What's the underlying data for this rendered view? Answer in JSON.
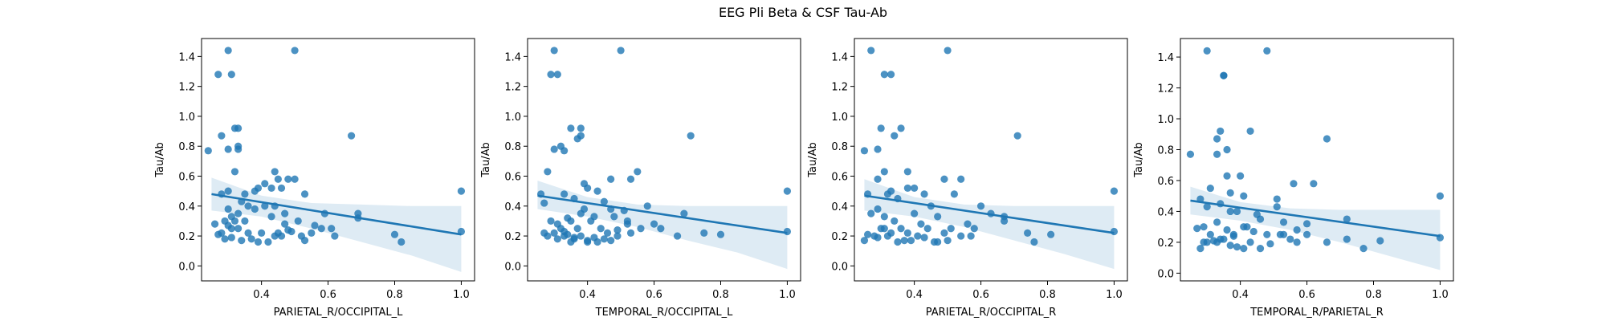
{
  "figure": {
    "title": "EEG Pli Beta & CSF Tau-Ab"
  },
  "colors": {
    "point": "#1f77b4",
    "line": "#1f77b4",
    "band": "#1f77b4"
  },
  "chart_data": [
    {
      "type": "scatter",
      "xlabel": "PARIETAL_R/OCCIPITAL_L",
      "ylabel": "Tau/Ab",
      "xlim": [
        0.22,
        1.04
      ],
      "ylim": [
        -0.1,
        1.52
      ],
      "xticks": [
        0.4,
        0.6,
        0.8,
        1.0
      ],
      "yticks": [
        0.0,
        0.2,
        0.4,
        0.6,
        0.8,
        1.0,
        1.2,
        1.4
      ],
      "regression": {
        "x": [
          0.25,
          1.0
        ],
        "y": [
          0.48,
          0.21
        ]
      },
      "ci": {
        "x": [
          0.25,
          0.4,
          0.55,
          0.7,
          0.85,
          1.0
        ],
        "upper": [
          0.59,
          0.47,
          0.42,
          0.41,
          0.4,
          0.4
        ],
        "lower": [
          0.37,
          0.33,
          0.25,
          0.16,
          0.07,
          -0.04
        ]
      },
      "points": {
        "x": [
          0.3,
          0.5,
          0.27,
          0.31,
          0.32,
          0.33,
          0.33,
          0.3,
          0.33,
          0.28,
          0.24,
          0.67,
          0.32,
          0.44,
          0.45,
          0.41,
          0.43,
          0.46,
          0.48,
          0.39,
          0.5,
          0.38,
          0.35,
          0.3,
          0.28,
          0.53,
          0.34,
          0.36,
          0.41,
          0.44,
          0.47,
          0.38,
          0.43,
          0.59,
          0.33,
          0.29,
          0.32,
          0.26,
          0.3,
          0.31,
          0.28,
          0.33,
          0.36,
          0.45,
          0.47,
          0.49,
          0.52,
          0.55,
          0.58,
          0.62,
          0.69,
          0.69,
          0.8,
          0.82,
          1.0,
          1.0,
          0.37,
          0.42,
          0.34,
          0.29,
          0.27,
          0.31,
          0.4,
          0.44,
          0.35,
          0.39,
          0.53,
          0.56,
          0.61,
          0.31,
          0.3,
          0.48,
          0.46,
          0.51
        ],
        "y": [
          1.44,
          1.44,
          1.28,
          1.28,
          0.92,
          0.92,
          0.8,
          0.78,
          0.78,
          0.87,
          0.77,
          0.87,
          0.63,
          0.63,
          0.58,
          0.55,
          0.52,
          0.52,
          0.58,
          0.52,
          0.58,
          0.5,
          0.48,
          0.5,
          0.48,
          0.48,
          0.43,
          0.4,
          0.4,
          0.4,
          0.35,
          0.38,
          0.33,
          0.35,
          0.35,
          0.3,
          0.3,
          0.28,
          0.27,
          0.25,
          0.22,
          0.25,
          0.22,
          0.22,
          0.28,
          0.23,
          0.2,
          0.22,
          0.25,
          0.2,
          0.35,
          0.32,
          0.21,
          0.16,
          0.5,
          0.23,
          0.18,
          0.16,
          0.17,
          0.18,
          0.21,
          0.19,
          0.22,
          0.2,
          0.3,
          0.16,
          0.17,
          0.27,
          0.25,
          0.33,
          0.38,
          0.24,
          0.2,
          0.3
        ]
      }
    },
    {
      "type": "scatter",
      "xlabel": "TEMPORAL_R/OCCIPITAL_L",
      "ylabel": "Tau/Ab",
      "xlim": [
        0.22,
        1.04
      ],
      "ylim": [
        -0.1,
        1.52
      ],
      "xticks": [
        0.4,
        0.6,
        0.8,
        1.0
      ],
      "yticks": [
        0.0,
        0.2,
        0.4,
        0.6,
        0.8,
        1.0,
        1.2,
        1.4
      ],
      "regression": {
        "x": [
          0.25,
          1.0
        ],
        "y": [
          0.47,
          0.22
        ]
      },
      "ci": {
        "x": [
          0.25,
          0.4,
          0.55,
          0.7,
          0.85,
          1.0
        ],
        "upper": [
          0.57,
          0.46,
          0.41,
          0.4,
          0.4,
          0.4
        ],
        "lower": [
          0.38,
          0.33,
          0.26,
          0.17,
          0.09,
          -0.02
        ]
      },
      "points": {
        "x": [
          0.3,
          0.5,
          0.29,
          0.31,
          0.35,
          0.38,
          0.3,
          0.32,
          0.33,
          0.37,
          0.38,
          0.71,
          0.28,
          0.55,
          0.53,
          0.39,
          0.4,
          0.47,
          0.26,
          0.43,
          0.36,
          0.27,
          0.33,
          0.39,
          0.45,
          0.58,
          0.38,
          0.42,
          0.34,
          0.29,
          0.31,
          0.48,
          0.51,
          0.6,
          0.62,
          0.27,
          0.35,
          0.37,
          0.3,
          0.33,
          0.44,
          0.46,
          0.49,
          0.52,
          0.56,
          0.69,
          0.75,
          0.8,
          1.0,
          1.0,
          0.36,
          0.4,
          0.42,
          0.47,
          0.53,
          0.67,
          0.31,
          0.34,
          0.28,
          0.43,
          0.38,
          0.35,
          0.41,
          0.49,
          0.45,
          0.52,
          0.36,
          0.32,
          0.4,
          0.33,
          0.47
        ],
        "y": [
          1.44,
          1.44,
          1.28,
          1.28,
          0.92,
          0.92,
          0.78,
          0.8,
          0.77,
          0.85,
          0.87,
          0.87,
          0.63,
          0.63,
          0.58,
          0.55,
          0.52,
          0.58,
          0.48,
          0.5,
          0.45,
          0.42,
          0.48,
          0.38,
          0.43,
          0.4,
          0.35,
          0.33,
          0.32,
          0.3,
          0.28,
          0.33,
          0.37,
          0.28,
          0.25,
          0.22,
          0.3,
          0.25,
          0.22,
          0.2,
          0.25,
          0.22,
          0.2,
          0.28,
          0.25,
          0.35,
          0.22,
          0.21,
          0.5,
          0.23,
          0.18,
          0.16,
          0.19,
          0.17,
          0.22,
          0.2,
          0.18,
          0.21,
          0.2,
          0.16,
          0.2,
          0.16,
          0.3,
          0.24,
          0.18,
          0.3,
          0.19,
          0.25,
          0.17,
          0.23,
          0.38
        ]
      }
    },
    {
      "type": "scatter",
      "xlabel": "PARIETAL_R/OCCIPITAL_R",
      "ylabel": "Tau/Ab",
      "xlim": [
        0.22,
        1.04
      ],
      "ylim": [
        -0.1,
        1.52
      ],
      "xticks": [
        0.4,
        0.6,
        0.8,
        1.0
      ],
      "yticks": [
        0.0,
        0.2,
        0.4,
        0.6,
        0.8,
        1.0,
        1.2,
        1.4
      ],
      "regression": {
        "x": [
          0.25,
          1.0
        ],
        "y": [
          0.47,
          0.22
        ]
      },
      "ci": {
        "x": [
          0.25,
          0.4,
          0.55,
          0.7,
          0.85,
          1.0
        ],
        "upper": [
          0.58,
          0.46,
          0.41,
          0.4,
          0.4,
          0.4
        ],
        "lower": [
          0.37,
          0.33,
          0.26,
          0.17,
          0.08,
          -0.02
        ]
      },
      "points": {
        "x": [
          0.27,
          0.5,
          0.31,
          0.33,
          0.3,
          0.36,
          0.25,
          0.29,
          0.34,
          0.71,
          0.31,
          0.38,
          0.29,
          0.49,
          0.54,
          0.38,
          0.4,
          0.32,
          0.33,
          0.43,
          0.26,
          0.35,
          0.45,
          0.52,
          0.29,
          0.27,
          0.31,
          0.34,
          0.4,
          0.47,
          0.6,
          0.63,
          0.67,
          0.56,
          0.3,
          0.33,
          0.36,
          0.38,
          0.42,
          0.44,
          0.49,
          0.51,
          0.54,
          0.58,
          0.74,
          0.76,
          0.81,
          1.0,
          1.0,
          0.28,
          0.25,
          0.37,
          0.41,
          0.46,
          0.5,
          0.57,
          0.67,
          0.35,
          0.32,
          0.39,
          0.43,
          0.47,
          0.29,
          0.26,
          0.31
        ],
        "y": [
          1.44,
          1.44,
          1.28,
          1.28,
          0.92,
          0.92,
          0.77,
          0.78,
          0.87,
          0.87,
          0.63,
          0.63,
          0.58,
          0.58,
          0.58,
          0.52,
          0.52,
          0.48,
          0.5,
          0.48,
          0.48,
          0.45,
          0.4,
          0.48,
          0.38,
          0.35,
          0.33,
          0.3,
          0.35,
          0.33,
          0.4,
          0.35,
          0.33,
          0.28,
          0.25,
          0.22,
          0.25,
          0.22,
          0.28,
          0.25,
          0.22,
          0.25,
          0.2,
          0.25,
          0.22,
          0.16,
          0.21,
          0.5,
          0.23,
          0.2,
          0.17,
          0.17,
          0.2,
          0.16,
          0.17,
          0.2,
          0.3,
          0.16,
          0.2,
          0.17,
          0.19,
          0.16,
          0.19,
          0.21,
          0.25
        ]
      }
    },
    {
      "type": "scatter",
      "xlabel": "TEMPORAL_R/PARIETAL_R",
      "ylabel": "Tau/Ab",
      "xlim": [
        0.22,
        1.04
      ],
      "ylim": [
        -0.05,
        1.52
      ],
      "xticks": [
        0.4,
        0.6,
        0.8,
        1.0
      ],
      "yticks": [
        0.0,
        0.2,
        0.4,
        0.6,
        0.8,
        1.0,
        1.2,
        1.4
      ],
      "regression": {
        "x": [
          0.25,
          1.0
        ],
        "y": [
          0.47,
          0.24
        ]
      },
      "ci": {
        "x": [
          0.25,
          0.4,
          0.55,
          0.7,
          0.85,
          1.0
        ],
        "upper": [
          0.56,
          0.46,
          0.42,
          0.41,
          0.41,
          0.41
        ],
        "lower": [
          0.38,
          0.34,
          0.28,
          0.2,
          0.11,
          0.02
        ]
      },
      "points": {
        "x": [
          0.3,
          0.48,
          0.35,
          0.35,
          0.33,
          0.34,
          0.36,
          0.33,
          0.25,
          0.66,
          0.43,
          0.36,
          0.4,
          0.62,
          0.31,
          0.37,
          0.41,
          0.56,
          0.28,
          0.51,
          0.34,
          0.3,
          0.37,
          0.39,
          0.45,
          0.51,
          0.72,
          0.29,
          0.33,
          0.41,
          0.46,
          0.53,
          0.6,
          0.36,
          0.38,
          0.42,
          0.27,
          0.31,
          0.34,
          0.48,
          0.52,
          0.55,
          0.57,
          0.6,
          0.66,
          0.72,
          0.77,
          0.82,
          1.0,
          1.0,
          0.29,
          0.33,
          0.39,
          0.43,
          0.46,
          0.3,
          0.35,
          0.41,
          0.49,
          0.53,
          0.57,
          0.37,
          0.32,
          0.44,
          0.28,
          0.38
        ],
        "y": [
          1.44,
          1.44,
          1.28,
          1.28,
          0.87,
          0.92,
          0.8,
          0.77,
          0.77,
          0.87,
          0.92,
          0.63,
          0.63,
          0.58,
          0.55,
          0.52,
          0.5,
          0.58,
          0.48,
          0.48,
          0.45,
          0.43,
          0.4,
          0.4,
          0.38,
          0.43,
          0.35,
          0.3,
          0.33,
          0.3,
          0.35,
          0.33,
          0.32,
          0.28,
          0.25,
          0.3,
          0.29,
          0.25,
          0.22,
          0.25,
          0.25,
          0.22,
          0.28,
          0.25,
          0.2,
          0.22,
          0.16,
          0.21,
          0.5,
          0.23,
          0.2,
          0.2,
          0.17,
          0.2,
          0.16,
          0.2,
          0.22,
          0.16,
          0.19,
          0.25,
          0.2,
          0.18,
          0.21,
          0.27,
          0.16,
          0.24
        ]
      }
    }
  ]
}
